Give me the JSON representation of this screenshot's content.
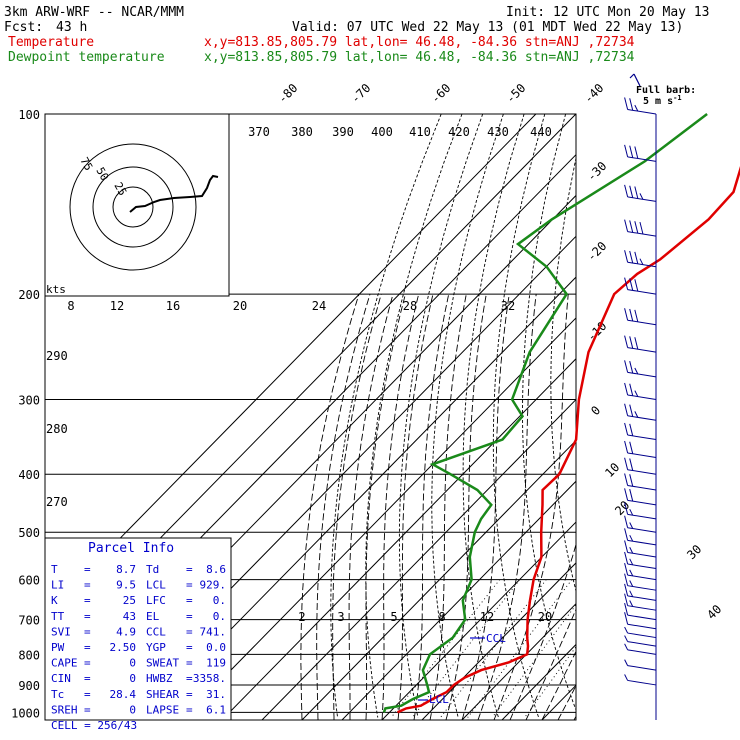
{
  "header": {
    "model": "3km ARW-WRF -- NCAR/MMM",
    "init": "Init: 12 UTC Mon 20 May 13",
    "fcst_label": "Fcst:",
    "fcst_hours": "43 h",
    "valid": "Valid: 07 UTC Wed 22 May 13 (01 MDT Wed 22 May 13)",
    "temp_label": "Temperature",
    "dew_label": "Dewpoint temperature",
    "location": "x,y=813.85,805.79   lat,lon= 46.48, -84.36   stn=ANJ ,72734"
  },
  "colors": {
    "temperature": "#e00000",
    "dewpoint": "#1a8a1a",
    "parcel_text": "#0000cc"
  },
  "barb_legend": {
    "title": "Full barb:",
    "value": "5 m s",
    "sup": "-1"
  },
  "hodograph": {
    "units": "kts",
    "ring_labels": [
      "75",
      "50",
      "25"
    ]
  },
  "chart_data": {
    "type": "skew-t",
    "pressure_levels": [
      100,
      200,
      300,
      400,
      500,
      600,
      700,
      800,
      900,
      1000
    ],
    "isotherm_labels": [
      "-80",
      "-70",
      "-60",
      "-50",
      "-40",
      "-30",
      "-20",
      "-10",
      "0",
      "10",
      "20",
      "30",
      "40"
    ],
    "theta_labels": [
      "370",
      "380",
      "390",
      "400",
      "410",
      "420",
      "430",
      "440"
    ],
    "theta_low_labels": [
      "290",
      "280",
      "270"
    ],
    "mixing_ratio_labels_top": [
      "8",
      "12",
      "16",
      "20",
      "24",
      "28",
      "32"
    ],
    "mixing_ratio_labels_low": [
      "2",
      "3",
      "5",
      "8",
      "12",
      "20"
    ],
    "temperature": [
      {
        "p": 1000,
        "t": -8.0
      },
      {
        "p": 985,
        "t": -6.8
      },
      {
        "p": 975,
        "t": -3.8
      },
      {
        "p": 950,
        "t": -2.5
      },
      {
        "p": 925,
        "t": -0.7
      },
      {
        "p": 900,
        "t": -0.6
      },
      {
        "p": 875,
        "t": 0.3
      },
      {
        "p": 850,
        "t": 2.6
      },
      {
        "p": 825,
        "t": 7.6
      },
      {
        "p": 800,
        "t": 10.2
      },
      {
        "p": 775,
        "t": 8.4
      },
      {
        "p": 750,
        "t": 6.1
      },
      {
        "p": 700,
        "t": 1.8
      },
      {
        "p": 650,
        "t": -2.3
      },
      {
        "p": 600,
        "t": -6.5
      },
      {
        "p": 550,
        "t": -10.1
      },
      {
        "p": 500,
        "t": -16.2
      },
      {
        "p": 450,
        "t": -22.6
      },
      {
        "p": 425,
        "t": -26.2
      },
      {
        "p": 400,
        "t": -25.9
      },
      {
        "p": 350,
        "t": -30.2
      },
      {
        "p": 300,
        "t": -39.3
      },
      {
        "p": 250,
        "t": -48.5
      },
      {
        "p": 200,
        "t": -56.3
      },
      {
        "p": 185,
        "t": -55.5
      },
      {
        "p": 175,
        "t": -53.3
      },
      {
        "p": 150,
        "t": -51.0
      },
      {
        "p": 135,
        "t": -51.5
      },
      {
        "p": 120,
        "t": -56.7
      },
      {
        "p": 100,
        "t": -60.6
      }
    ],
    "dewpoint": [
      {
        "p": 1000,
        "t": -11.4
      },
      {
        "p": 985,
        "t": -12.0
      },
      {
        "p": 975,
        "t": -8.7
      },
      {
        "p": 950,
        "t": -7.4
      },
      {
        "p": 925,
        "t": -5.1
      },
      {
        "p": 900,
        "t": -7.3
      },
      {
        "p": 850,
        "t": -12.0
      },
      {
        "p": 800,
        "t": -14.1
      },
      {
        "p": 750,
        "t": -12.5
      },
      {
        "p": 700,
        "t": -13.8
      },
      {
        "p": 650,
        "t": -19.1
      },
      {
        "p": 600,
        "t": -22.0
      },
      {
        "p": 550,
        "t": -28.0
      },
      {
        "p": 500,
        "t": -32.8
      },
      {
        "p": 475,
        "t": -34.5
      },
      {
        "p": 450,
        "t": -35.4
      },
      {
        "p": 425,
        "t": -42.5
      },
      {
        "p": 400,
        "t": -53.1
      },
      {
        "p": 385,
        "t": -60.0
      },
      {
        "p": 350,
        "t": -48.6
      },
      {
        "p": 320,
        "t": -49.3
      },
      {
        "p": 300,
        "t": -56.0
      },
      {
        "p": 250,
        "t": -63.2
      },
      {
        "p": 200,
        "t": -68.2
      },
      {
        "p": 180,
        "t": -79.9
      },
      {
        "p": 165,
        "t": -92.6
      },
      {
        "p": 150,
        "t": -90.2
      },
      {
        "p": 120,
        "t": -81.2
      },
      {
        "p": 100,
        "t": -77.2
      }
    ],
    "lcl_pressure": 929,
    "ccl_pressure": 741,
    "lcl_label": "LCL",
    "ccl_label": "CCL",
    "wind_barbs": [
      {
        "p": 100,
        "dir": 265,
        "spd": 25
      },
      {
        "p": 120,
        "dir": 265,
        "spd": 30
      },
      {
        "p": 140,
        "dir": 265,
        "spd": 35
      },
      {
        "p": 160,
        "dir": 265,
        "spd": 40
      },
      {
        "p": 180,
        "dir": 265,
        "spd": 35
      },
      {
        "p": 200,
        "dir": 265,
        "spd": 30
      },
      {
        "p": 225,
        "dir": 265,
        "spd": 30
      },
      {
        "p": 250,
        "dir": 265,
        "spd": 30
      },
      {
        "p": 275,
        "dir": 265,
        "spd": 25
      },
      {
        "p": 300,
        "dir": 265,
        "spd": 25
      },
      {
        "p": 325,
        "dir": 265,
        "spd": 25
      },
      {
        "p": 350,
        "dir": 265,
        "spd": 20
      },
      {
        "p": 375,
        "dir": 265,
        "spd": 20
      },
      {
        "p": 400,
        "dir": 265,
        "spd": 20
      },
      {
        "p": 425,
        "dir": 265,
        "spd": 20
      },
      {
        "p": 450,
        "dir": 265,
        "spd": 20
      },
      {
        "p": 475,
        "dir": 265,
        "spd": 15
      },
      {
        "p": 500,
        "dir": 265,
        "spd": 15
      },
      {
        "p": 525,
        "dir": 265,
        "spd": 15
      },
      {
        "p": 550,
        "dir": 265,
        "spd": 15
      },
      {
        "p": 575,
        "dir": 265,
        "spd": 15
      },
      {
        "p": 600,
        "dir": 265,
        "spd": 15
      },
      {
        "p": 625,
        "dir": 265,
        "spd": 15
      },
      {
        "p": 650,
        "dir": 265,
        "spd": 15
      },
      {
        "p": 675,
        "dir": 265,
        "spd": 15
      },
      {
        "p": 700,
        "dir": 265,
        "spd": 10
      },
      {
        "p": 725,
        "dir": 265,
        "spd": 10
      },
      {
        "p": 750,
        "dir": 265,
        "spd": 5
      },
      {
        "p": 775,
        "dir": 265,
        "spd": 5
      },
      {
        "p": 800,
        "dir": 265,
        "spd": 5
      },
      {
        "p": 850,
        "dir": 265,
        "spd": 5
      },
      {
        "p": 900,
        "dir": 265,
        "spd": 5
      }
    ]
  },
  "parcel_info": {
    "title": "Parcel Info",
    "rows": [
      {
        "l1": "T",
        "v1": "8.7",
        "l2": "Td",
        "v2": "8.6"
      },
      {
        "l1": "LI",
        "v1": "9.5",
        "l2": "LCL",
        "v2": "929."
      },
      {
        "l1": "K",
        "v1": "25",
        "l2": "LFC",
        "v2": "0."
      },
      {
        "l1": "TT",
        "v1": "43",
        "l2": "EL",
        "v2": "0."
      },
      {
        "l1": "SVI",
        "v1": "4.9",
        "l2": "CCL",
        "v2": "741."
      },
      {
        "l1": "PW",
        "v1": "2.50",
        "l2": "YGP",
        "v2": "0.0"
      },
      {
        "l1": "CAPE",
        "v1": "0",
        "l2": "SWEAT",
        "v2": "119"
      },
      {
        "l1": "CIN",
        "v1": "0",
        "l2": "HWBZ",
        "v2": "3358."
      },
      {
        "l1": "Tc",
        "v1": "28.4",
        "l2": "SHEAR",
        "v2": "31."
      },
      {
        "l1": "SREH",
        "v1": "0",
        "l2": "LAPSE",
        "v2": "6.1"
      }
    ],
    "cell": "CELL = 256/43"
  }
}
